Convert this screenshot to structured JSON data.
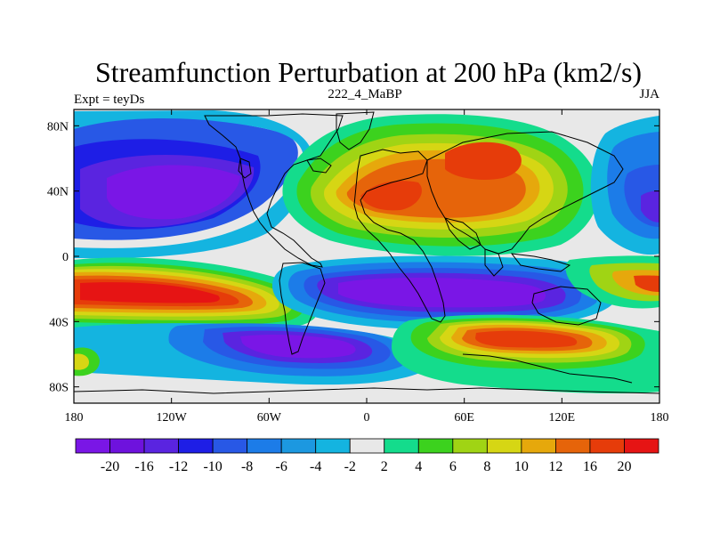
{
  "title": "Streamfunction Perturbation at 200 hPa (km2/s)",
  "left_label": "Expt = teyDs",
  "center_label": "222_4_MaBP",
  "right_label": "JJA",
  "lat_ticks": [
    {
      "label": "80N",
      "value": 80
    },
    {
      "label": "40N",
      "value": 40
    },
    {
      "label": "0",
      "value": 0
    },
    {
      "label": "40S",
      "value": -40
    },
    {
      "label": "80S",
      "value": -80
    }
  ],
  "lon_ticks": [
    {
      "label": "180",
      "value": -180
    },
    {
      "label": "120W",
      "value": -120
    },
    {
      "label": "60W",
      "value": -60
    },
    {
      "label": "0",
      "value": 0
    },
    {
      "label": "60E",
      "value": 60
    },
    {
      "label": "120E",
      "value": 120
    },
    {
      "label": "180",
      "value": 180
    }
  ],
  "colorbar": {
    "colors": [
      "#7a16e6",
      "#6e12dd",
      "#5a24e0",
      "#1e1ee6",
      "#2858e6",
      "#1c7ce8",
      "#1c98e0",
      "#14b4e0",
      "#e8e8e8",
      "#14dc8c",
      "#3cd21e",
      "#a0d414",
      "#d6d614",
      "#e6a80c",
      "#e6640a",
      "#e63c0a",
      "#e61414"
    ],
    "labels": [
      "-20",
      "-16",
      "-12",
      "-10",
      "-8",
      "-6",
      "-4",
      "-2",
      "2",
      "4",
      "6",
      "8",
      "10",
      "12",
      "16",
      "20"
    ]
  },
  "map_colors": {
    "background": "#e8e8e8",
    "coast": "#000000"
  }
}
